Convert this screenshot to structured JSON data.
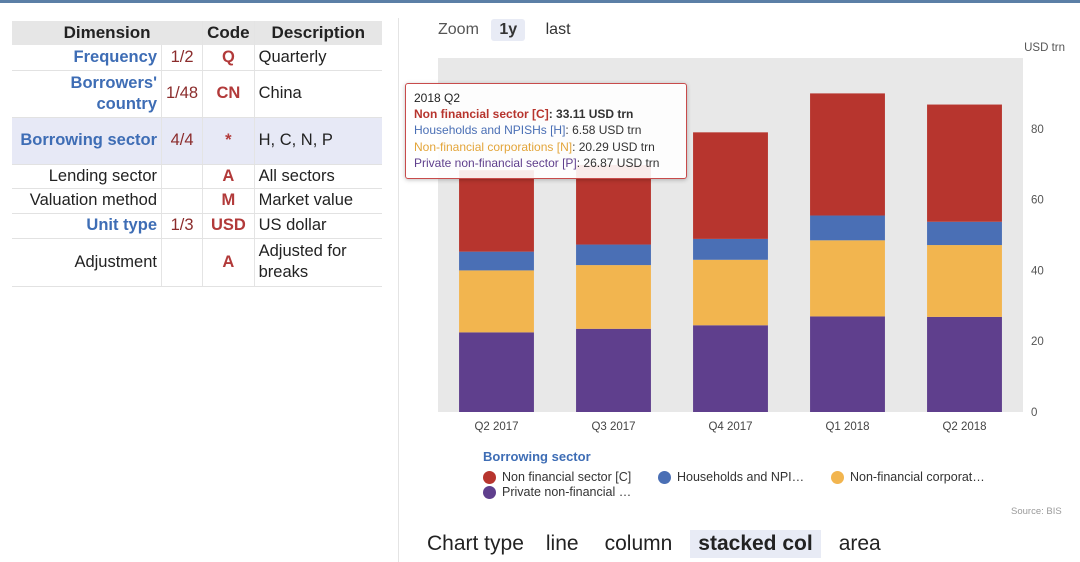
{
  "table": {
    "headers": [
      "Dimension",
      "Code",
      "Description"
    ],
    "rows": [
      {
        "dimension": "Frequency",
        "fraction": "1/2",
        "code": "Q",
        "description": "Quarterly"
      },
      {
        "dimension": "Borrowers' country",
        "fraction": "1/48",
        "code": "CN",
        "description": "China"
      },
      {
        "dimension": "Borrowing sector",
        "fraction": "4/4",
        "code": "*",
        "description": "H, C, N, P"
      },
      {
        "dimension": "Lending sector",
        "fraction": "",
        "code": "A",
        "description": "All sectors"
      },
      {
        "dimension": "Valuation method",
        "fraction": "",
        "code": "M",
        "description": "Market value"
      },
      {
        "dimension": "Unit type",
        "fraction": "1/3",
        "code": "USD",
        "description": "US dollar"
      },
      {
        "dimension": "Adjustment",
        "fraction": "",
        "code": "A",
        "description": "Adjusted for breaks"
      }
    ]
  },
  "zoom": {
    "label": "Zoom",
    "options": [
      "1y",
      "last"
    ],
    "active": "1y"
  },
  "chart_data": {
    "type": "bar",
    "stacked": true,
    "unit_label": "USD trn",
    "categories": [
      "Q2 2017",
      "Q3 2017",
      "Q4 2017",
      "Q1 2018",
      "Q2 2018"
    ],
    "series": [
      {
        "name": "Private non-financial sector [P]",
        "color": "#5f3f8d",
        "values": [
          22.5,
          23.5,
          24.5,
          27.0,
          26.87
        ]
      },
      {
        "name": "Non-financial corporations [N]",
        "color": "#f2b54f",
        "values": [
          17.5,
          18.0,
          18.5,
          21.5,
          20.29
        ]
      },
      {
        "name": "Households and NPISHs [H]",
        "color": "#4a6fb5",
        "values": [
          5.3,
          5.8,
          5.9,
          7.0,
          6.58
        ]
      },
      {
        "name": "Non financial sector [C]",
        "color": "#b7352e",
        "values": [
          23.0,
          22.5,
          30.1,
          34.5,
          33.11
        ]
      }
    ],
    "y_ticks": [
      0,
      20,
      40,
      60,
      80
    ],
    "ylim": [
      0,
      100
    ],
    "grid": false,
    "legend_position": "bottom",
    "legend_title": "Borrowing sector",
    "legend_labels": [
      "Non financial sector [C]",
      "Households and NPI…",
      "Non-financial corporat…",
      "Private non-financial …"
    ],
    "source": "Source: BIS"
  },
  "tooltip": {
    "title": "2018 Q2",
    "lines": [
      {
        "label": "Non financial sector [C]",
        "value": ": 33.11 USD trn",
        "color": "#b7352e",
        "bold": true
      },
      {
        "label": "Households and NPISHs [H]",
        "value": ": 6.58 USD trn",
        "color": "#4a6fb5",
        "bold": false
      },
      {
        "label": "Non-financial corporations [N]",
        "value": ": 20.29 USD trn",
        "color": "#e3a53a",
        "bold": false
      },
      {
        "label": "Private non-financial sector [P]",
        "value": ": 26.87 USD trn",
        "color": "#5f3f8d",
        "bold": false
      }
    ]
  },
  "chart_type": {
    "label": "Chart type",
    "options": [
      "line",
      "column",
      "stacked col",
      "area"
    ],
    "active": "stacked col"
  }
}
